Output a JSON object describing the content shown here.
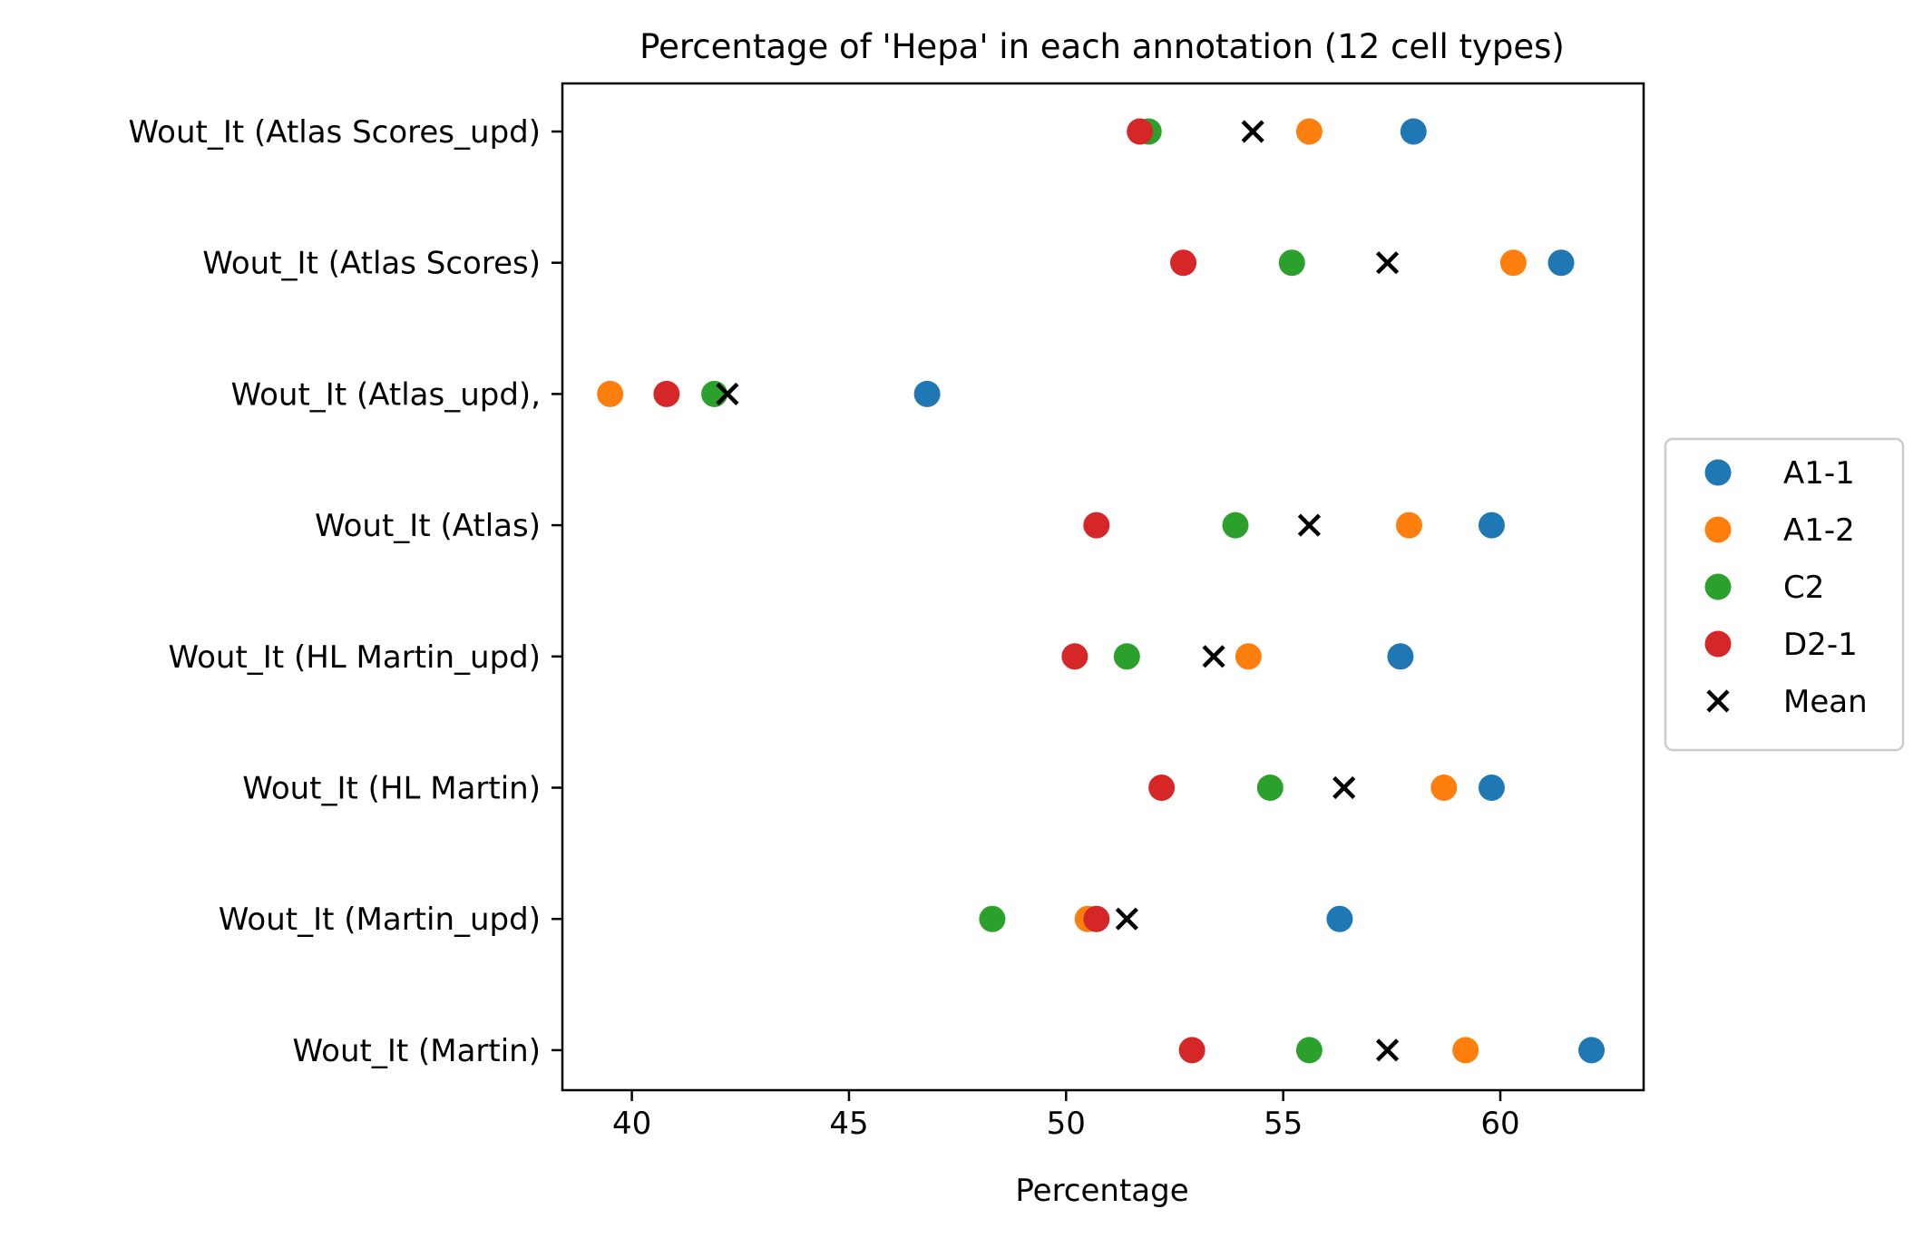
{
  "chart_data": {
    "type": "scatter",
    "title": "Percentage of 'Hepa' in each annotation (12 cell types)",
    "xlabel": "Percentage",
    "ylabel": "",
    "xlim": [
      38.4,
      63.3
    ],
    "xticks": [
      40,
      45,
      50,
      55,
      60
    ],
    "categories": [
      "Wout_It (Atlas Scores_upd)",
      "Wout_It (Atlas Scores)",
      "Wout_It (Atlas_upd),",
      "Wout_It (Atlas)",
      "Wout_It (HL Martin_upd)",
      "Wout_It (HL Martin)",
      "Wout_It (Martin_upd)",
      "Wout_It (Martin)"
    ],
    "grid": false,
    "legend_position": "center-right outside",
    "series": [
      {
        "name": "A1-1",
        "color": "#1f77b4",
        "marker": "circle",
        "values": [
          58.0,
          61.4,
          46.8,
          59.8,
          57.7,
          59.8,
          56.3,
          62.1
        ]
      },
      {
        "name": "A1-2",
        "color": "#ff7f0e",
        "marker": "circle",
        "values": [
          55.6,
          60.3,
          39.5,
          57.9,
          54.2,
          58.7,
          50.5,
          59.2
        ]
      },
      {
        "name": "C2",
        "color": "#2ca02c",
        "marker": "circle",
        "values": [
          51.9,
          55.2,
          41.9,
          53.9,
          51.4,
          54.7,
          48.3,
          55.6
        ]
      },
      {
        "name": "D2-1",
        "color": "#d62728",
        "marker": "circle",
        "values": [
          51.7,
          52.7,
          40.8,
          50.7,
          50.2,
          52.2,
          50.7,
          52.9
        ]
      },
      {
        "name": "Mean",
        "color": "#000000",
        "marker": "x",
        "values": [
          54.3,
          57.4,
          42.2,
          55.6,
          53.4,
          56.4,
          51.4,
          57.4
        ]
      }
    ]
  }
}
